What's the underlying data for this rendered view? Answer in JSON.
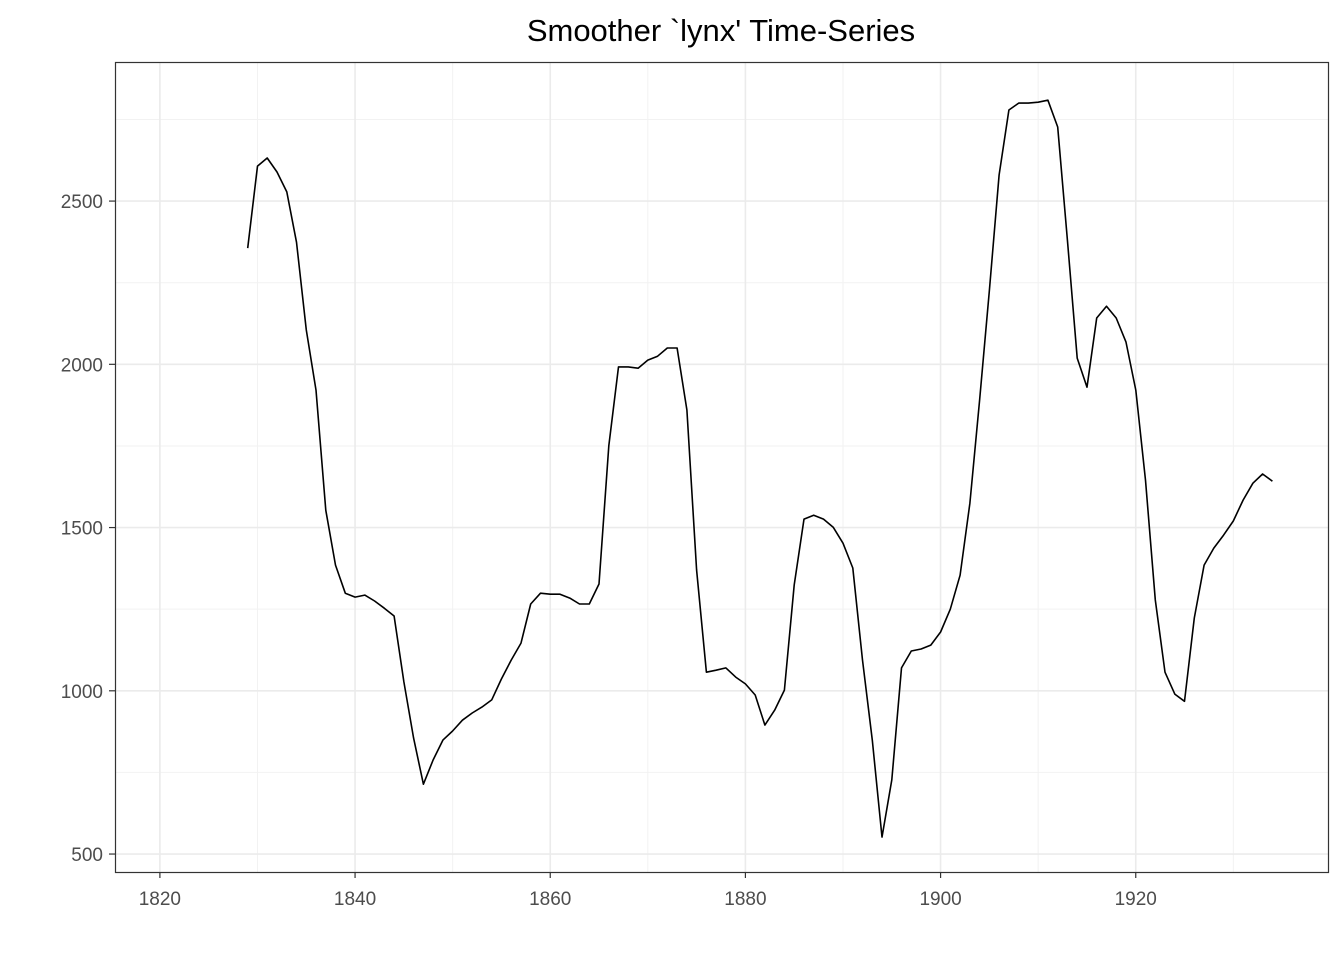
{
  "chart_data": {
    "type": "line",
    "title": "Smoother `lynx' Time-Series",
    "xlabel": "",
    "ylabel": "",
    "xlim": [
      1815.4,
      1939.7
    ],
    "ylim": [
      445,
      2926
    ],
    "xticks": [
      1820,
      1840,
      1860,
      1880,
      1900,
      1920
    ],
    "yticks": [
      500,
      1000,
      1500,
      2000,
      2500
    ],
    "grid": true,
    "line_color": "#000000",
    "x": [
      1829,
      1830,
      1831,
      1832,
      1833,
      1834,
      1835,
      1836,
      1837,
      1838,
      1839,
      1840,
      1841,
      1842,
      1843,
      1844,
      1845,
      1846,
      1847,
      1848,
      1849,
      1850,
      1851,
      1852,
      1853,
      1854,
      1855,
      1856,
      1857,
      1858,
      1859,
      1860,
      1861,
      1862,
      1863,
      1864,
      1865,
      1866,
      1867,
      1868,
      1869,
      1870,
      1871,
      1872,
      1873,
      1874,
      1875,
      1876,
      1877,
      1878,
      1879,
      1880,
      1881,
      1882,
      1883,
      1884,
      1885,
      1886,
      1887,
      1888,
      1889,
      1890,
      1891,
      1892,
      1893,
      1894,
      1895,
      1896,
      1897,
      1898,
      1899,
      1900,
      1901,
      1902,
      1903,
      1904,
      1905,
      1906,
      1907,
      1908,
      1909,
      1910,
      1911,
      1912,
      1913,
      1914,
      1915,
      1916,
      1917,
      1918,
      1919,
      1920,
      1921,
      1922,
      1923,
      1924,
      1925,
      1926,
      1927,
      1928,
      1929,
      1930,
      1931,
      1932,
      1933,
      1934
    ],
    "y": [
      2356,
      2607,
      2632,
      2589,
      2528,
      2374,
      2105,
      1921,
      1553,
      1385,
      1299,
      1287,
      1293,
      1275,
      1253,
      1229,
      1027,
      855,
      714,
      788,
      849,
      877,
      910,
      932,
      950,
      972,
      1036,
      1094,
      1146,
      1266,
      1299,
      1296,
      1296,
      1284,
      1266,
      1266,
      1327,
      1750,
      1992,
      1992,
      1988,
      2013,
      2025,
      2050,
      2050,
      1860,
      1370,
      1057,
      1063,
      1070,
      1042,
      1021,
      987,
      895,
      941,
      1002,
      1324,
      1526,
      1538,
      1526,
      1501,
      1452,
      1376,
      1094,
      849,
      552,
      727,
      1070,
      1122,
      1128,
      1140,
      1180,
      1250,
      1354,
      1575,
      1890,
      2227,
      2580,
      2779,
      2800,
      2800,
      2803,
      2809,
      2727,
      2381,
      2019,
      1930,
      2142,
      2178,
      2142,
      2068,
      1921,
      1645,
      1278,
      1057,
      990,
      968,
      1223,
      1385,
      1437,
      1477,
      1520,
      1584,
      1636,
      1664,
      1642
    ]
  }
}
